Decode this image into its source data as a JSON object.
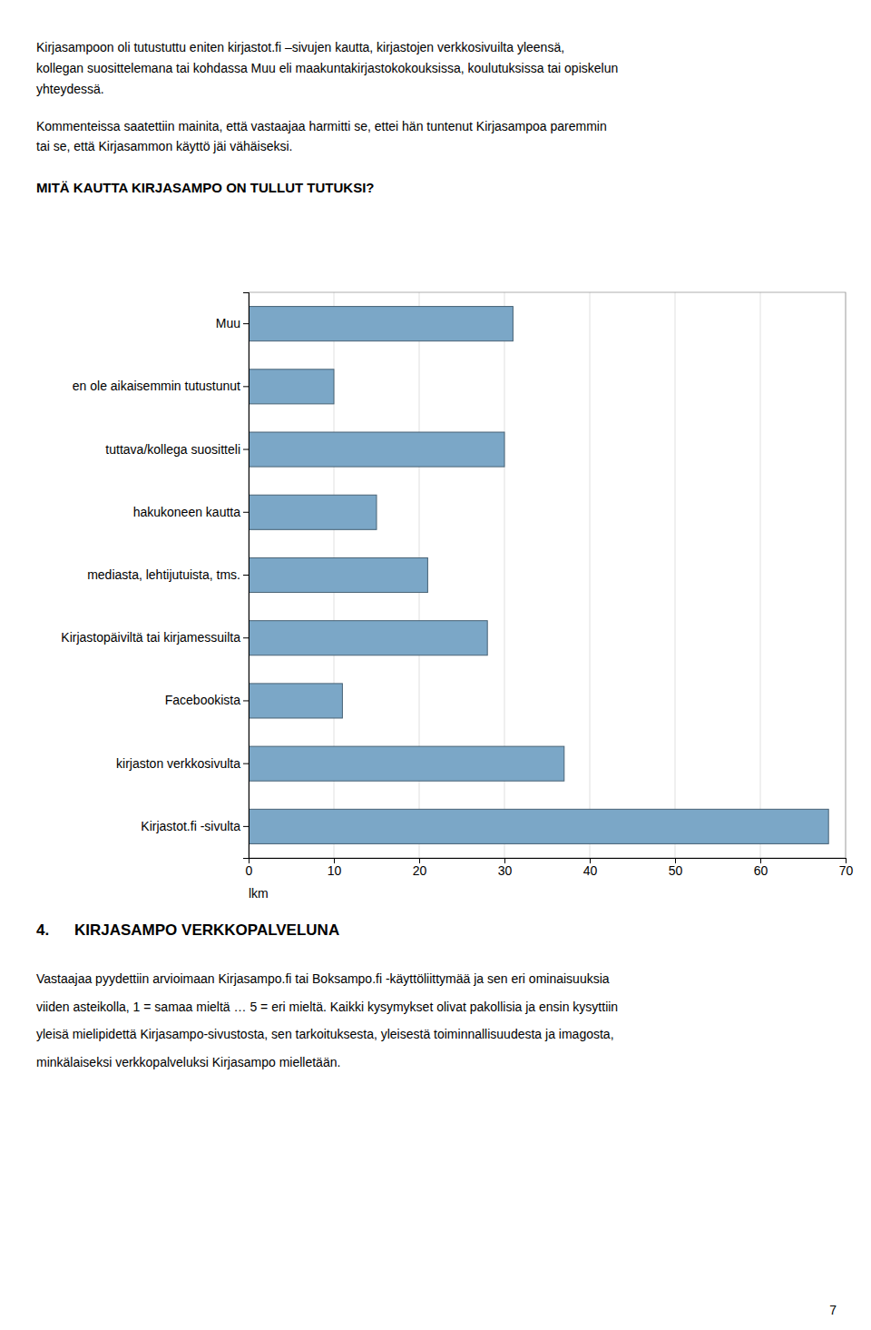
{
  "chart_data": {
    "type": "bar",
    "orientation": "horizontal",
    "title": "MITÄ KAUTTA KIRJASAMPO ON TULLUT TUTUKSI?",
    "categories": [
      "Kirjastot.fi -sivulta",
      "kirjaston verkkosivulta",
      "Facebookista",
      "Kirjastopäiviltä tai kirjamessuilta",
      "mediasta, lehtijutuista, tms.",
      "hakukoneen kautta",
      "tuttava/kollega suositteli",
      "en ole aikaisemmin tutustunut",
      "Muu"
    ],
    "values": [
      68,
      37,
      11,
      28,
      21,
      15,
      30,
      10,
      31
    ],
    "xlim": [
      0,
      70
    ],
    "xticks": [
      0,
      10,
      20,
      30,
      40,
      50,
      60,
      70
    ],
    "xlabel": "lkm",
    "color": "#7BA7C7",
    "grid": true
  },
  "paragraphs": [
    [
      "Kirjasampoon oli tutustuttu eniten kirjastot.fi –sivujen kautta, kirjastojen verkkosivuilta yleensä,",
      "kollegan suosittelemana tai kohdassa Muu eli maakuntakirjastokokouksissa, koulutuksissa tai opiskelun",
      "yhteydessä."
    ],
    [
      "Kommenteissa saatettiin mainita, että vastaajaa harmitti se, ettei hän tuntenut Kirjasampoa paremmin",
      "tai se, että Kirjasammon käyttö jäi vähäiseksi."
    ]
  ],
  "section": {
    "number": "4.",
    "title": "KIRJASAMPO VERKKOPALVELUNA",
    "body": [
      "Vastaajaa pyydettiin arvioimaan Kirjasampo.fi tai Boksampo.fi ‑käyttöliittymää ja sen eri ominaisuuksia",
      "viiden asteikolla, 1 = samaa mieltä … 5 = eri mieltä.  Kaikki kysymykset olivat pakollisia ja ensin kysyttiin",
      "yleisä mielipidettä Kirjasampo-sivustosta, sen tarkoituksesta, yleisestä toiminnallisuudesta ja imagosta,",
      "minkälaiseksi verkkopalveluksi Kirjasampo mielletään."
    ]
  },
  "page_number": "7"
}
